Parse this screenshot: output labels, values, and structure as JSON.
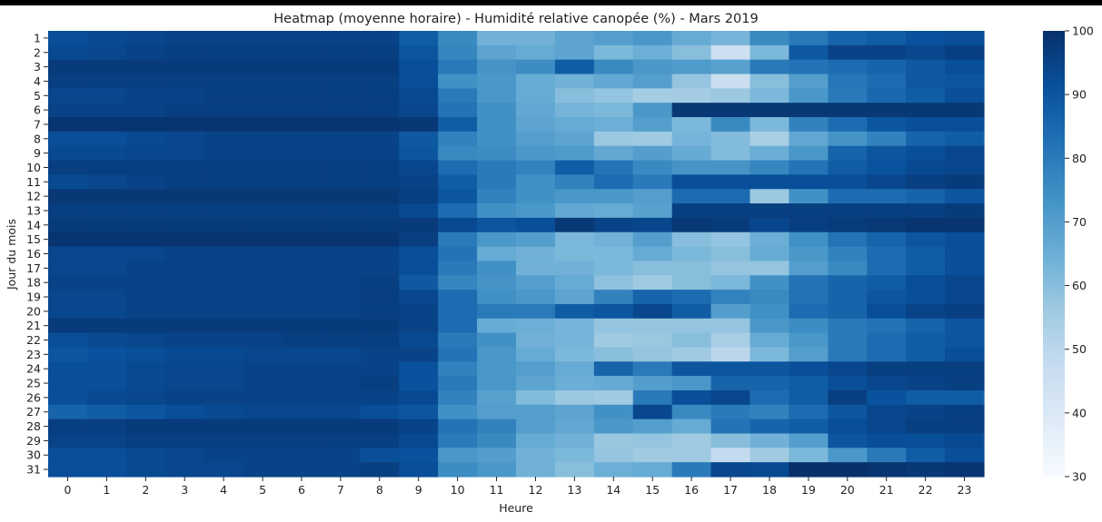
{
  "chart_data": {
    "type": "heatmap",
    "title": "Heatmap (moyenne horaire) - Humidité relative canopée (%) - Mars 2019",
    "xlabel": "Heure",
    "ylabel": "Jour du mois",
    "x_categories": [
      "0",
      "1",
      "2",
      "3",
      "4",
      "5",
      "6",
      "7",
      "8",
      "9",
      "10",
      "11",
      "12",
      "13",
      "14",
      "15",
      "16",
      "17",
      "18",
      "19",
      "20",
      "21",
      "22",
      "23"
    ],
    "y_categories": [
      "1",
      "2",
      "3",
      "4",
      "5",
      "6",
      "7",
      "8",
      "9",
      "10",
      "11",
      "12",
      "13",
      "14",
      "15",
      "16",
      "17",
      "18",
      "19",
      "20",
      "21",
      "22",
      "23",
      "24",
      "25",
      "26",
      "27",
      "28",
      "29",
      "30",
      "31"
    ],
    "colorbar": {
      "min": 30,
      "max": 100,
      "ticks": [
        "100",
        "90",
        "80",
        "70",
        "60",
        "50",
        "40",
        "30"
      ],
      "colors": [
        "#f7fbff",
        "#deebf7",
        "#c6dbef",
        "#9ecae1",
        "#6baed6",
        "#4292c6",
        "#2171b5",
        "#08519c",
        "#08306b"
      ]
    },
    "values": [
      [
        92,
        93,
        94,
        95,
        95,
        95,
        95,
        95,
        95,
        88,
        76,
        64,
        64,
        68,
        70,
        72,
        66,
        63,
        76,
        80,
        86,
        88,
        91,
        92
      ],
      [
        93,
        94,
        95,
        96,
        96,
        96,
        96,
        96,
        96,
        90,
        77,
        68,
        66,
        68,
        62,
        65,
        60,
        45,
        62,
        89,
        95,
        95,
        94,
        96
      ],
      [
        97,
        97,
        97,
        97,
        97,
        97,
        97,
        97,
        97,
        92,
        80,
        73,
        75,
        88,
        76,
        72,
        71,
        69,
        80,
        82,
        84,
        86,
        89,
        92
      ],
      [
        96,
        96,
        96,
        96,
        96,
        96,
        96,
        96,
        96,
        92,
        74,
        72,
        66,
        64,
        67,
        70,
        58,
        46,
        60,
        70,
        81,
        84,
        89,
        90
      ],
      [
        94,
        94,
        95,
        95,
        96,
        96,
        96,
        96,
        96,
        93,
        80,
        72,
        66,
        60,
        58,
        55,
        55,
        57,
        62,
        72,
        80,
        85,
        88,
        92
      ],
      [
        95,
        95,
        95,
        96,
        96,
        96,
        96,
        96,
        96,
        94,
        82,
        74,
        67,
        63,
        62,
        72,
        98,
        98,
        98,
        98,
        98,
        98,
        98,
        98
      ],
      [
        99,
        99,
        99,
        99,
        99,
        99,
        99,
        99,
        99,
        98,
        88,
        74,
        68,
        66,
        65,
        70,
        62,
        76,
        62,
        78,
        84,
        90,
        92,
        92
      ],
      [
        92,
        92,
        93,
        94,
        95,
        95,
        95,
        95,
        95,
        89,
        78,
        74,
        70,
        68,
        57,
        56,
        63,
        61,
        54,
        67,
        73,
        78,
        86,
        88
      ],
      [
        93,
        93,
        94,
        94,
        95,
        95,
        95,
        95,
        95,
        90,
        76,
        75,
        72,
        71,
        67,
        70,
        66,
        61,
        65,
        72,
        86,
        90,
        92,
        94
      ],
      [
        96,
        96,
        96,
        96,
        96,
        96,
        96,
        96,
        96,
        94,
        84,
        80,
        78,
        88,
        82,
        76,
        73,
        73,
        77,
        82,
        88,
        91,
        93,
        94
      ],
      [
        93,
        94,
        95,
        96,
        96,
        96,
        96,
        96,
        96,
        95,
        88,
        80,
        74,
        78,
        84,
        80,
        92,
        92,
        92,
        92,
        92,
        94,
        96,
        97
      ],
      [
        98,
        98,
        98,
        98,
        98,
        98,
        98,
        98,
        98,
        96,
        90,
        78,
        74,
        72,
        72,
        70,
        84,
        84,
        57,
        74,
        84,
        84,
        86,
        90
      ],
      [
        96,
        96,
        96,
        96,
        96,
        96,
        96,
        96,
        96,
        93,
        84,
        74,
        72,
        67,
        66,
        69,
        96,
        96,
        96,
        96,
        96,
        96,
        96,
        97
      ],
      [
        97,
        97,
        97,
        97,
        97,
        97,
        97,
        97,
        97,
        97,
        93,
        90,
        92,
        98,
        95,
        94,
        98,
        97,
        94,
        96,
        97,
        98,
        99,
        99
      ],
      [
        99,
        99,
        99,
        99,
        99,
        99,
        99,
        99,
        99,
        96,
        80,
        72,
        70,
        62,
        64,
        70,
        60,
        58,
        65,
        74,
        82,
        86,
        90,
        92
      ],
      [
        94,
        94,
        94,
        95,
        95,
        95,
        95,
        95,
        95,
        92,
        82,
        66,
        64,
        62,
        62,
        66,
        62,
        60,
        66,
        72,
        78,
        84,
        88,
        92
      ],
      [
        94,
        94,
        95,
        95,
        95,
        95,
        95,
        95,
        95,
        92,
        80,
        74,
        64,
        64,
        62,
        60,
        60,
        58,
        58,
        70,
        76,
        84,
        88,
        92
      ],
      [
        95,
        95,
        95,
        95,
        95,
        95,
        95,
        95,
        96,
        89,
        77,
        73,
        70,
        66,
        59,
        56,
        60,
        62,
        74,
        82,
        86,
        88,
        92,
        94
      ],
      [
        94,
        94,
        95,
        95,
        95,
        95,
        95,
        95,
        96,
        94,
        84,
        74,
        72,
        68,
        78,
        86,
        84,
        78,
        76,
        82,
        86,
        90,
        92,
        94
      ],
      [
        94,
        94,
        95,
        95,
        95,
        95,
        95,
        95,
        96,
        95,
        84,
        80,
        80,
        88,
        90,
        94,
        88,
        70,
        74,
        84,
        86,
        92,
        95,
        96
      ],
      [
        97,
        97,
        97,
        97,
        97,
        97,
        97,
        97,
        97,
        95,
        84,
        66,
        65,
        63,
        58,
        58,
        58,
        58,
        72,
        75,
        80,
        82,
        86,
        90
      ],
      [
        92,
        93,
        94,
        95,
        95,
        95,
        96,
        96,
        96,
        93,
        80,
        74,
        64,
        63,
        56,
        57,
        60,
        54,
        66,
        72,
        80,
        84,
        88,
        90
      ],
      [
        90,
        91,
        92,
        93,
        93,
        94,
        94,
        94,
        95,
        95,
        82,
        72,
        66,
        62,
        60,
        58,
        56,
        50,
        62,
        70,
        80,
        84,
        88,
        92
      ],
      [
        92,
        92,
        93,
        94,
        94,
        95,
        95,
        95,
        95,
        91,
        78,
        72,
        70,
        66,
        86,
        80,
        90,
        90,
        90,
        92,
        94,
        96,
        96,
        96
      ],
      [
        92,
        92,
        93,
        94,
        94,
        95,
        95,
        95,
        96,
        91,
        80,
        72,
        68,
        65,
        66,
        70,
        72,
        86,
        86,
        88,
        92,
        94,
        95,
        96
      ],
      [
        92,
        93,
        94,
        95,
        95,
        95,
        95,
        95,
        95,
        93,
        78,
        69,
        61,
        57,
        56,
        80,
        92,
        94,
        84,
        88,
        96,
        91,
        88,
        88
      ],
      [
        86,
        88,
        90,
        92,
        93,
        94,
        94,
        94,
        92,
        90,
        74,
        70,
        70,
        68,
        74,
        94,
        76,
        80,
        78,
        84,
        90,
        94,
        95,
        96
      ],
      [
        96,
        96,
        97,
        97,
        97,
        97,
        97,
        97,
        97,
        95,
        82,
        78,
        70,
        67,
        72,
        70,
        66,
        82,
        86,
        88,
        92,
        94,
        96,
        96
      ],
      [
        95,
        95,
        96,
        96,
        96,
        96,
        96,
        96,
        96,
        93,
        80,
        76,
        66,
        64,
        57,
        58,
        56,
        60,
        64,
        70,
        90,
        92,
        92,
        93
      ],
      [
        92,
        92,
        93,
        94,
        95,
        95,
        95,
        95,
        92,
        91,
        72,
        70,
        64,
        62,
        58,
        56,
        56,
        48,
        56,
        62,
        72,
        80,
        88,
        92
      ],
      [
        92,
        92,
        93,
        94,
        94,
        95,
        95,
        95,
        96,
        92,
        75,
        72,
        64,
        60,
        65,
        66,
        80,
        94,
        93,
        100,
        100,
        99,
        98,
        99
      ]
    ]
  }
}
